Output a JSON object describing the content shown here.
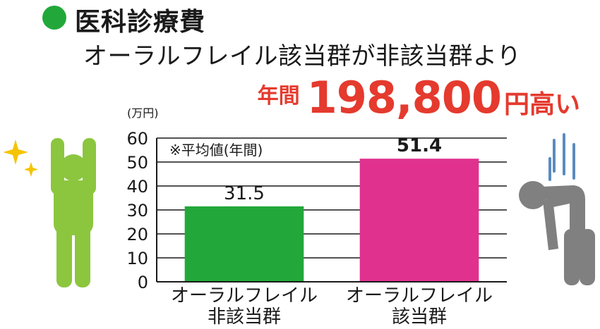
{
  "heading": {
    "title": "医科診療費",
    "subtitle": "オーラルフレイル該当群が非該当群より",
    "headline_prefix": "年間",
    "headline_amount": "198,800",
    "headline_suffix": "円高い"
  },
  "colors": {
    "accent_green": "#22a83a",
    "non_frail_bar": "#22a83a",
    "frail_bar": "#e0318f",
    "headline_red": "#e53a2e",
    "healthy_figure": "#8cc63f",
    "unwell_figure": "#808080",
    "sparkle": "#f5c400",
    "sweat_lines": "#5b8bbf"
  },
  "icons": [
    "healthy-person-icon",
    "sparkle-icon",
    "tired-person-icon"
  ],
  "chart_data": {
    "type": "bar",
    "unit_label": "(万円)",
    "note": "※平均値(年間)",
    "categories": [
      "オーラルフレイル\n非該当群",
      "オーラルフレイル\n該当群"
    ],
    "values": [
      31.5,
      51.4
    ],
    "value_labels": [
      "31.5",
      "51.4"
    ],
    "ylim": [
      0,
      60
    ],
    "yticks": [
      0,
      10,
      20,
      30,
      40,
      50,
      60
    ],
    "grid": true
  }
}
